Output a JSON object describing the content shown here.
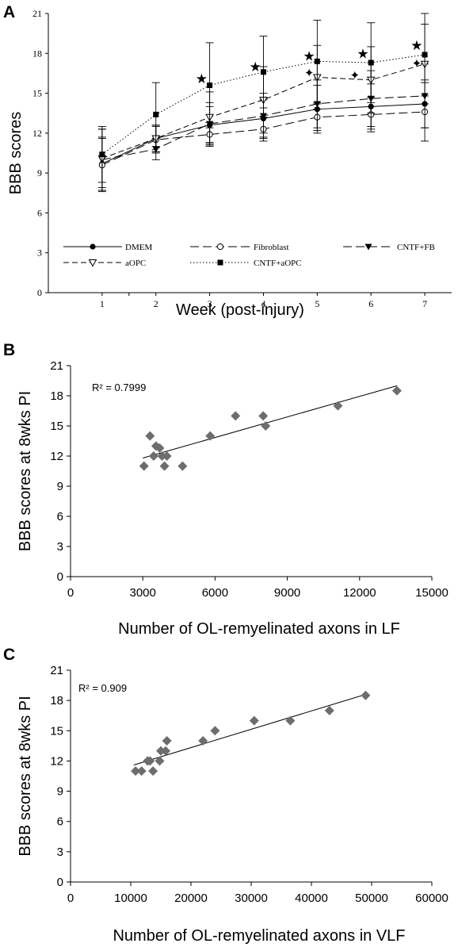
{
  "chart_data": [
    {
      "panel": "A",
      "type": "line",
      "xlabel": "Week (post-injury)",
      "ylabel": "BBB scores",
      "xlim": [
        0,
        7.5
      ],
      "ylim": [
        0,
        21
      ],
      "x_ticks": [
        1,
        2,
        3,
        4,
        5,
        6,
        7
      ],
      "y_ticks": [
        0,
        3,
        6,
        9,
        12,
        15,
        18,
        21
      ],
      "x": [
        1,
        2,
        3,
        4,
        5,
        6,
        7
      ],
      "series": [
        {
          "name": "DMEM",
          "values": [
            9.7,
            11.6,
            12.6,
            13.1,
            13.8,
            14.0,
            14.2
          ],
          "errors": [
            2.0,
            1.0,
            1.4,
            1.4,
            1.8,
            1.7,
            1.8
          ],
          "marker": "filled-circle",
          "dash": "solid"
        },
        {
          "name": "Fibroblast",
          "values": [
            9.6,
            11.5,
            11.9,
            12.3,
            13.2,
            13.4,
            13.6
          ],
          "errors": [
            2.0,
            1.0,
            0.9,
            0.9,
            1.0,
            1.3,
            2.2
          ],
          "marker": "open-circle",
          "dash": "long-dash"
        },
        {
          "name": "CNTF+FB",
          "values": [
            10.0,
            10.8,
            12.7,
            13.3,
            14.2,
            14.6,
            14.8
          ],
          "errors": [
            2.3,
            0.8,
            1.6,
            1.7,
            1.8,
            2.1,
            2.4
          ],
          "marker": "filled-triangle-down",
          "dash": "long-dash"
        },
        {
          "name": "aOPC",
          "values": [
            10.1,
            11.6,
            13.2,
            14.5,
            16.2,
            16.0,
            17.2
          ],
          "errors": [
            2.2,
            1.0,
            1.9,
            2.5,
            2.4,
            2.5,
            3.0
          ],
          "marker": "open-triangle-down",
          "dash": "dash"
        },
        {
          "name": "CNTF+aOPC",
          "values": [
            10.4,
            13.4,
            15.6,
            16.6,
            17.4,
            17.3,
            17.9
          ],
          "errors": [
            2.1,
            2.4,
            3.2,
            2.7,
            3.1,
            3.0,
            3.1
          ],
          "marker": "filled-square",
          "dash": "dotted"
        }
      ],
      "annotations": [
        {
          "symbol": "★",
          "x": 2.85,
          "y": 16.1
        },
        {
          "symbol": "★",
          "x": 3.85,
          "y": 17.0
        },
        {
          "symbol": "★",
          "x": 4.85,
          "y": 17.8
        },
        {
          "symbol": "✦",
          "x": 4.85,
          "y": 16.6
        },
        {
          "symbol": "★",
          "x": 5.85,
          "y": 18.0
        },
        {
          "symbol": "✦",
          "x": 5.7,
          "y": 16.4
        },
        {
          "symbol": "★",
          "x": 6.85,
          "y": 18.6
        },
        {
          "symbol": "✦",
          "x": 6.85,
          "y": 17.3
        }
      ],
      "legend_placement": "bottom"
    },
    {
      "panel": "B",
      "type": "scatter",
      "xlabel": "Number of OL-remyelinated axons in LF",
      "ylabel": "BBB scores at 8wks PI",
      "xlim": [
        0,
        15000
      ],
      "ylim": [
        0,
        21
      ],
      "x_ticks": [
        0,
        3000,
        6000,
        9000,
        12000,
        15000
      ],
      "y_ticks": [
        0,
        3,
        6,
        9,
        12,
        15,
        18,
        21
      ],
      "points": [
        [
          3050,
          11
        ],
        [
          3300,
          14
        ],
        [
          3450,
          12
        ],
        [
          3550,
          13
        ],
        [
          3700,
          12.8
        ],
        [
          3800,
          12
        ],
        [
          3900,
          11
        ],
        [
          4000,
          12
        ],
        [
          4650,
          11
        ],
        [
          5800,
          14
        ],
        [
          6850,
          16
        ],
        [
          8000,
          16
        ],
        [
          8100,
          15
        ],
        [
          11100,
          17
        ],
        [
          13550,
          18.5
        ]
      ],
      "trendline": {
        "x": [
          3000,
          13550
        ],
        "y": [
          11.8,
          19.0
        ]
      },
      "r2_label": "R² = 0.7999"
    },
    {
      "panel": "C",
      "type": "scatter",
      "xlabel": "Number of OL-remyelinated axons in VLF",
      "ylabel": "BBB scores at 8wks PI",
      "xlim": [
        0,
        60000
      ],
      "ylim": [
        0,
        21
      ],
      "x_ticks": [
        0,
        10000,
        20000,
        30000,
        40000,
        50000,
        60000
      ],
      "y_ticks": [
        0,
        3,
        6,
        9,
        12,
        15,
        18,
        21
      ],
      "points": [
        [
          10800,
          11
        ],
        [
          11800,
          11
        ],
        [
          12800,
          12
        ],
        [
          13200,
          12
        ],
        [
          13700,
          11
        ],
        [
          14800,
          12
        ],
        [
          15000,
          13
        ],
        [
          15800,
          13
        ],
        [
          16000,
          14
        ],
        [
          22000,
          14
        ],
        [
          24000,
          15
        ],
        [
          30500,
          16
        ],
        [
          36500,
          16
        ],
        [
          43000,
          17
        ],
        [
          49000,
          18.5
        ]
      ],
      "trendline": {
        "x": [
          10500,
          49000
        ],
        "y": [
          11.6,
          18.6
        ]
      },
      "r2_label": "R² = 0.909"
    }
  ],
  "panel_letters": [
    "A",
    "B",
    "C"
  ],
  "colors": {
    "axis": "#000000",
    "line": "#000000",
    "scatter_marker": "#6d6d6d",
    "trendline": "#000000"
  }
}
